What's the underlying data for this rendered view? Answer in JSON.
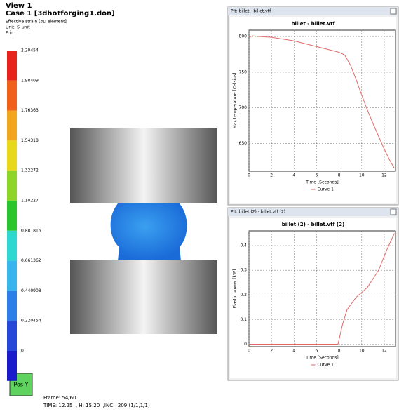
{
  "view": {
    "title": "View 1",
    "case": "Case 1 [3dhotforging1.don]",
    "variable": "Effective strain [3D element]",
    "unit": "Unit: S_unit",
    "mode": "Frin"
  },
  "color_legend": {
    "values": [
      2.20454,
      1.98409,
      1.76363,
      1.54318,
      1.32272,
      1.10227,
      0.881816,
      0.661362,
      0.440908,
      0.220454,
      0
    ],
    "colors": [
      "#e8231c",
      "#f0611c",
      "#f3a51e",
      "#e8d81c",
      "#8fd42a",
      "#2cc52c",
      "#2ed8d0",
      "#38b4ee",
      "#2d7fe8",
      "#2548d8",
      "#1a1ccc"
    ]
  },
  "orientation": {
    "label": "Pos Y"
  },
  "status": {
    "frame": "Frame: 54/60",
    "time": "TIME: 12.25  , H: 15.20  ,INC:  209 (1/1,1/1)"
  },
  "chart_data": [
    {
      "type": "line",
      "window_title": "Plt: billet - billet.vtf",
      "title": "billet - billet.vtf",
      "x_label": "Time [Seconds]",
      "y_label": "Max temperature [Celsius]",
      "xlim": [
        0,
        13
      ],
      "xticks": [
        0,
        2,
        4,
        6,
        8,
        10,
        12
      ],
      "ylim": [
        611,
        809
      ],
      "yticks": [
        650,
        700,
        750,
        800
      ],
      "grid": true,
      "x": [
        0,
        0.3,
        1,
        2,
        4,
        6,
        8,
        8.5,
        9,
        9.5,
        10,
        10.5,
        11,
        11.5,
        12,
        12.5,
        12.9
      ],
      "series": [
        {
          "name": "Curve 1",
          "color": "#e06a6a",
          "values": [
            799,
            801,
            800,
            799,
            794,
            786,
            778,
            774,
            760,
            740,
            718,
            697,
            678,
            660,
            642,
            626,
            615
          ]
        }
      ]
    },
    {
      "type": "line",
      "window_title": "Plt: billet (2) - billet.vtf (2)",
      "title": "billet (2) - billet.vtf (2)",
      "x_label": "Time [Seconds]",
      "y_label": "Plastic power [kW]",
      "xlim": [
        0,
        13
      ],
      "xticks": [
        0,
        2,
        4,
        6,
        8,
        10,
        12
      ],
      "ylim": [
        -0.01,
        0.46
      ],
      "yticks": [
        0,
        0.1,
        0.2,
        0.3,
        0.4
      ],
      "grid": true,
      "x": [
        0,
        2,
        4,
        6,
        7.9,
        8,
        8.3,
        8.7,
        9.5,
        10.5,
        11.5,
        12.2,
        12.9
      ],
      "series": [
        {
          "name": "Curve 1",
          "color": "#e06a6a",
          "values": [
            0,
            0,
            0,
            0,
            0,
            0.02,
            0.08,
            0.14,
            0.19,
            0.23,
            0.3,
            0.38,
            0.45
          ]
        }
      ]
    }
  ]
}
